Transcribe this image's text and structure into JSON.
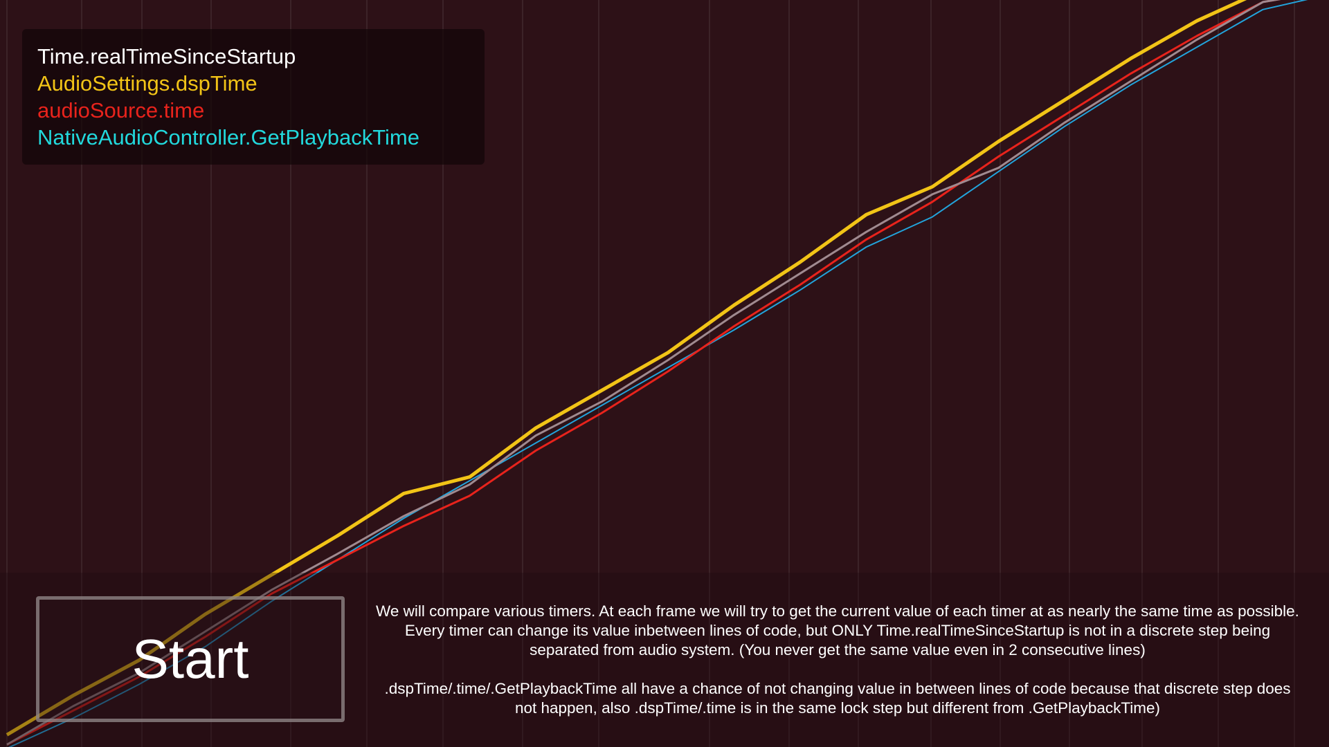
{
  "legend": {
    "items": [
      {
        "label": "Time.realTimeSinceStartup",
        "color": "#ffffff"
      },
      {
        "label": "AudioSettings.dspTime",
        "color": "#f2c417"
      },
      {
        "label": "audioSource.time",
        "color": "#e8231c"
      },
      {
        "label": "NativeAudioController.GetPlaybackTime",
        "color": "#22d8dc"
      }
    ]
  },
  "start_button": {
    "label": "Start"
  },
  "description": {
    "paragraph1": "We will compare various timers. At each frame we will try to get the current value of each timer at as nearly the same time as possible. Every timer can change its value inbetween lines of code, but ONLY Time.realTimeSinceStartup is not in a discrete step being separated from audio system. (You never get the same value even in 2 consecutive lines)",
    "paragraph2": ".dspTime/.time/.GetPlaybackTime all have a chance of not changing value in between lines of code because that discrete step does not happen, also .dspTime/.time is in the same lock step but different from .GetPlaybackTime)"
  },
  "chart_data": {
    "type": "line",
    "x": [
      0,
      1,
      2,
      3,
      4,
      5,
      6,
      7,
      8,
      9,
      10,
      11,
      12,
      13,
      14,
      15,
      16,
      17,
      18,
      19,
      20
    ],
    "series": [
      {
        "name": "Time.realTimeSinceStartup",
        "color": "#a08a90",
        "values": [
          0.5,
          5.6,
          10.0,
          15.5,
          21.0,
          25.8,
          30.8,
          35.0,
          41.5,
          46.0,
          51.5,
          57.5,
          63.0,
          68.5,
          73.5,
          77.0,
          83.0,
          88.5,
          94.0,
          99.0,
          100.5
        ]
      },
      {
        "name": "AudioSettings.dspTime",
        "color": "#f2c417",
        "values": [
          1.8,
          7.0,
          11.7,
          17.8,
          23.0,
          28.2,
          33.8,
          36.0,
          42.5,
          47.5,
          52.5,
          58.8,
          64.5,
          70.8,
          74.5,
          80.5,
          86.0,
          91.5,
          96.5,
          100.5,
          100.5
        ]
      },
      {
        "name": "audioSource.time",
        "color": "#e8231c",
        "values": [
          0.5,
          5.0,
          9.5,
          14.8,
          20.5,
          25.0,
          29.5,
          33.5,
          39.5,
          44.5,
          50.0,
          56.0,
          61.5,
          67.5,
          72.5,
          78.5,
          84.0,
          89.5,
          94.5,
          99.0,
          100.5
        ]
      },
      {
        "name": "NativeAudioController.GetPlaybackTime",
        "color": "#22a4dc",
        "values": [
          0.0,
          4.0,
          8.5,
          13.5,
          19.5,
          25.0,
          30.5,
          35.5,
          40.5,
          45.5,
          50.5,
          55.5,
          60.8,
          66.5,
          70.5,
          76.5,
          82.5,
          88.0,
          93.0,
          98.0,
          100.0
        ]
      }
    ],
    "gridlines": "vertical"
  }
}
